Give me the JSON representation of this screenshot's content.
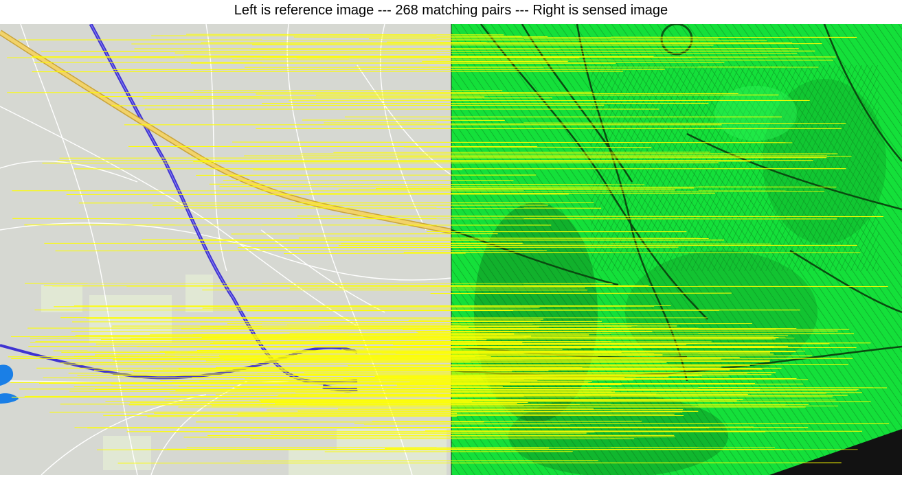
{
  "figure": {
    "title": "Left is reference image --- 268 matching pairs --- Right is sensed image",
    "match_line_color": "#ffff00",
    "reference_image": {
      "background": "#d6d8d2",
      "road_minor": "#ffffff",
      "road_primary": "#f2d36a",
      "road_primary_edge": "#c9a43a",
      "railway": "#4a3ed6",
      "water": "#1a7fe6",
      "urban": "#e1e8d4"
    },
    "sensed_image": {
      "vegetation": "#14e03a",
      "terrain_dark": "#0b5a14",
      "terrain_mid": "#0e8d22",
      "nodata": "#121212"
    }
  }
}
